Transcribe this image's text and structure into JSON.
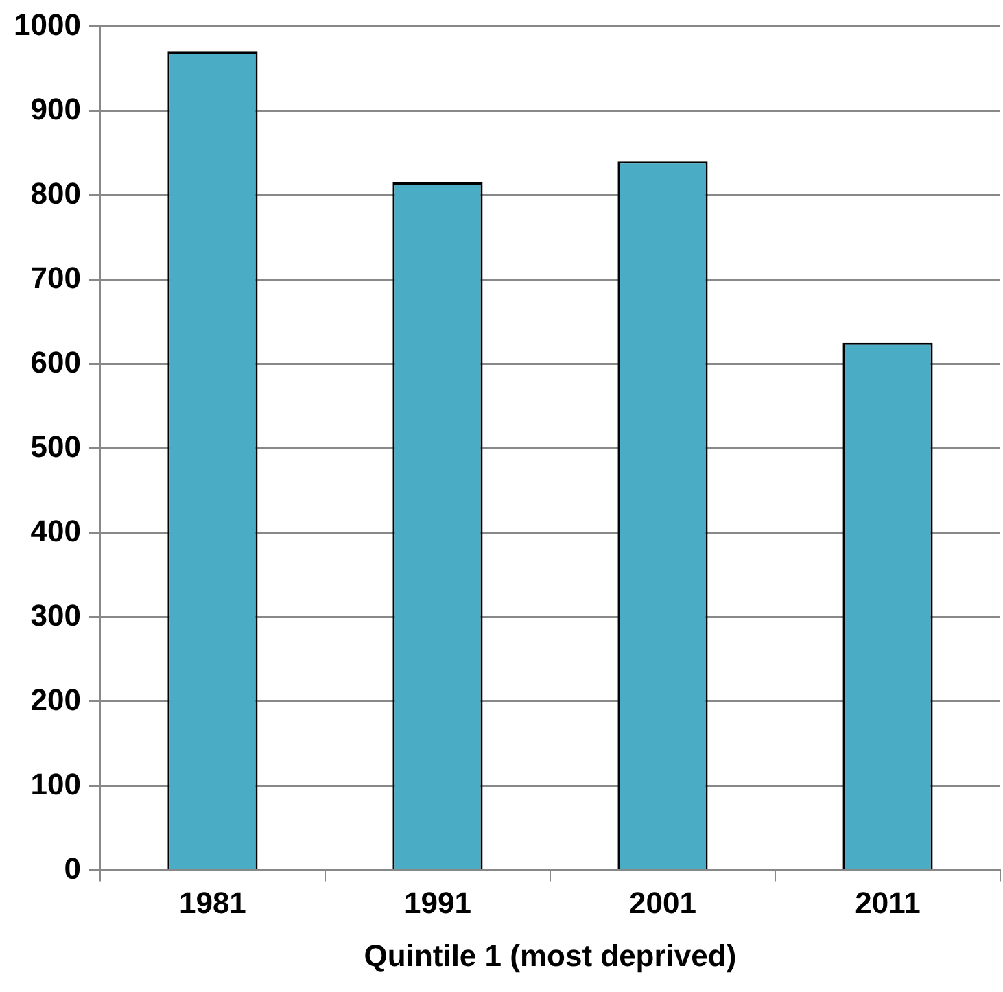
{
  "chart_data": {
    "type": "bar",
    "xlabel": "Quintile 1 (most deprived)",
    "categories": [
      "1981",
      "1991",
      "2001",
      "2011"
    ],
    "values": [
      970,
      815,
      840,
      625
    ],
    "color": "#4bacc6",
    "ylim": [
      0,
      1000
    ],
    "yticks": [
      0,
      100,
      200,
      300,
      400,
      500,
      600,
      700,
      800,
      900,
      1000
    ],
    "grid": "y",
    "legend": false
  }
}
